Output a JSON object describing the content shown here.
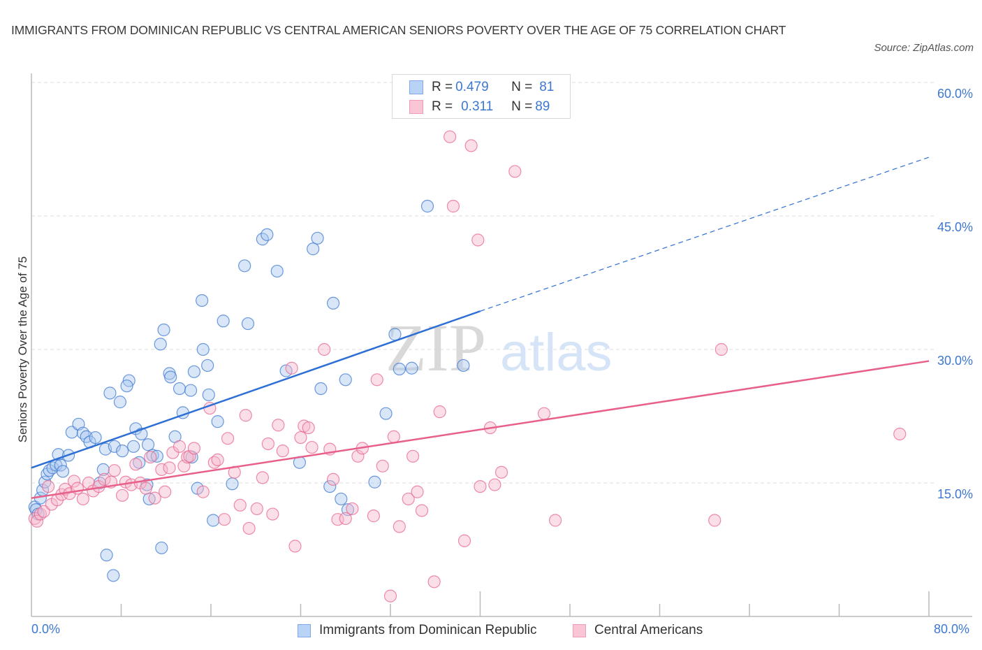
{
  "header": {
    "title": "IMMIGRANTS FROM DOMINICAN REPUBLIC VS CENTRAL AMERICAN SENIORS POVERTY OVER THE AGE OF 75 CORRELATION CHART",
    "source": "Source: ZipAtlas.com"
  },
  "legend": {
    "rows": [
      {
        "r_label": "R = ",
        "r_value": "0.479",
        "n_label": "N = ",
        "n_value": "81"
      },
      {
        "r_label": "R = ",
        "r_value": "0.311",
        "n_label": "N = ",
        "n_value": "89"
      }
    ]
  },
  "watermark": {
    "part1": "ZIP",
    "part2": "atlas"
  },
  "chart_data": {
    "type": "scatter",
    "title": "IMMIGRANTS FROM DOMINICAN REPUBLIC VS CENTRAL AMERICAN SENIORS POVERTY OVER THE AGE OF 75 CORRELATION CHART",
    "xlabel": "",
    "ylabel": "Seniors Poverty Over the Age of 75",
    "xlim": [
      0,
      80
    ],
    "ylim": [
      0,
      60
    ],
    "x_tick_labels": [
      "0.0%",
      "80.0%"
    ],
    "y_ticks": [
      15,
      30,
      45,
      60
    ],
    "y_tick_labels": [
      "15.0%",
      "30.0%",
      "45.0%",
      "60.0%"
    ],
    "grid": true,
    "legend_position": "top-center",
    "colors": {
      "blue": "#3d78d0",
      "blue_fill": "#a9c8f0",
      "pink": "#e8668f",
      "pink_fill": "#f7b8cb",
      "axis_text": "#3d78d0"
    },
    "series": [
      {
        "name": "Immigrants from Dominican Republic",
        "r": 0.479,
        "n": 81,
        "trend": {
          "x0": 0,
          "y0": 16.7,
          "x1": 40,
          "y1": 34.3,
          "dashed_to_x": 80,
          "dashed_to_y": 51.6
        },
        "points": [
          [
            0.3,
            12.3
          ],
          [
            0.4,
            12.0
          ],
          [
            0.6,
            11.5
          ],
          [
            0.8,
            13.3
          ],
          [
            1.0,
            14.2
          ],
          [
            1.2,
            15.1
          ],
          [
            1.4,
            16.0
          ],
          [
            1.6,
            16.4
          ],
          [
            1.9,
            16.7
          ],
          [
            2.2,
            17.0
          ],
          [
            2.4,
            18.2
          ],
          [
            2.6,
            17.0
          ],
          [
            2.8,
            16.3
          ],
          [
            3.3,
            18.1
          ],
          [
            3.6,
            20.7
          ],
          [
            4.2,
            21.6
          ],
          [
            4.6,
            20.6
          ],
          [
            4.9,
            20.2
          ],
          [
            5.2,
            19.6
          ],
          [
            5.7,
            20.1
          ],
          [
            6.1,
            15.0
          ],
          [
            6.4,
            16.5
          ],
          [
            6.6,
            18.8
          ],
          [
            7.0,
            25.1
          ],
          [
            7.4,
            19.1
          ],
          [
            7.9,
            24.1
          ],
          [
            8.1,
            18.6
          ],
          [
            8.7,
            26.5
          ],
          [
            8.5,
            25.9
          ],
          [
            9.1,
            19.1
          ],
          [
            9.3,
            21.1
          ],
          [
            9.6,
            17.3
          ],
          [
            9.8,
            20.5
          ],
          [
            10.4,
            19.3
          ],
          [
            10.3,
            14.8
          ],
          [
            10.8,
            18.1
          ],
          [
            11.2,
            18.0
          ],
          [
            10.5,
            13.2
          ],
          [
            11.5,
            30.6
          ],
          [
            11.8,
            32.2
          ],
          [
            12.3,
            27.3
          ],
          [
            12.4,
            26.9
          ],
          [
            12.8,
            20.2
          ],
          [
            13.2,
            25.6
          ],
          [
            13.5,
            22.9
          ],
          [
            14.2,
            25.4
          ],
          [
            14.5,
            27.5
          ],
          [
            14.8,
            14.4
          ],
          [
            15.2,
            35.5
          ],
          [
            14.3,
            17.9
          ],
          [
            15.3,
            30.0
          ],
          [
            15.7,
            28.2
          ],
          [
            15.8,
            24.9
          ],
          [
            16.2,
            10.8
          ],
          [
            16.6,
            21.9
          ],
          [
            17.1,
            33.2
          ],
          [
            17.9,
            14.9
          ],
          [
            19.0,
            39.4
          ],
          [
            19.3,
            32.9
          ],
          [
            20.6,
            42.4
          ],
          [
            21.0,
            42.9
          ],
          [
            21.9,
            38.8
          ],
          [
            22.7,
            27.6
          ],
          [
            23.9,
            17.3
          ],
          [
            25.1,
            41.3
          ],
          [
            25.5,
            42.5
          ],
          [
            25.8,
            25.6
          ],
          [
            26.6,
            14.6
          ],
          [
            26.9,
            35.2
          ],
          [
            27.6,
            13.2
          ],
          [
            28.0,
            26.6
          ],
          [
            28.2,
            12.0
          ],
          [
            30.6,
            15.1
          ],
          [
            31.6,
            22.8
          ],
          [
            32.4,
            31.7
          ],
          [
            32.8,
            27.8
          ],
          [
            33.9,
            27.9
          ],
          [
            35.3,
            46.1
          ],
          [
            38.5,
            28.2
          ],
          [
            6.7,
            6.9
          ],
          [
            7.3,
            4.6
          ],
          [
            11.6,
            7.7
          ]
        ]
      },
      {
        "name": "Central Americans",
        "r": 0.311,
        "n": 89,
        "trend": {
          "x0": 0,
          "y0": 13.3,
          "x1": 80,
          "y1": 28.7
        },
        "points": [
          [
            0.3,
            11.0
          ],
          [
            0.5,
            10.7
          ],
          [
            0.8,
            11.5
          ],
          [
            1.1,
            11.8
          ],
          [
            1.5,
            14.6
          ],
          [
            1.8,
            12.6
          ],
          [
            2.3,
            13.1
          ],
          [
            2.7,
            13.7
          ],
          [
            3.0,
            14.3
          ],
          [
            3.4,
            13.8
          ],
          [
            3.8,
            15.2
          ],
          [
            4.1,
            14.4
          ],
          [
            4.6,
            13.2
          ],
          [
            5.1,
            15.0
          ],
          [
            5.5,
            14.1
          ],
          [
            6.0,
            14.6
          ],
          [
            6.5,
            15.4
          ],
          [
            7.1,
            15.1
          ],
          [
            7.4,
            16.4
          ],
          [
            8.1,
            13.6
          ],
          [
            8.4,
            15.1
          ],
          [
            8.9,
            14.8
          ],
          [
            9.3,
            17.1
          ],
          [
            9.7,
            15.0
          ],
          [
            10.2,
            14.4
          ],
          [
            10.6,
            17.9
          ],
          [
            11.0,
            13.3
          ],
          [
            11.6,
            16.5
          ],
          [
            11.9,
            14.0
          ],
          [
            12.3,
            16.7
          ],
          [
            12.6,
            18.4
          ],
          [
            13.2,
            19.1
          ],
          [
            13.6,
            16.9
          ],
          [
            13.9,
            17.9
          ],
          [
            14.1,
            18.0
          ],
          [
            14.5,
            18.9
          ],
          [
            15.3,
            14.0
          ],
          [
            15.9,
            23.4
          ],
          [
            16.3,
            17.3
          ],
          [
            16.6,
            17.6
          ],
          [
            17.2,
            10.9
          ],
          [
            17.5,
            20.0
          ],
          [
            18.1,
            16.2
          ],
          [
            18.6,
            12.5
          ],
          [
            19.1,
            22.6
          ],
          [
            19.4,
            9.9
          ],
          [
            20.1,
            12.1
          ],
          [
            20.6,
            15.6
          ],
          [
            21.1,
            19.4
          ],
          [
            21.5,
            11.5
          ],
          [
            22.0,
            21.5
          ],
          [
            22.4,
            18.6
          ],
          [
            23.2,
            27.9
          ],
          [
            23.5,
            7.9
          ],
          [
            24.0,
            20.1
          ],
          [
            24.3,
            21.4
          ],
          [
            24.7,
            21.2
          ],
          [
            25.0,
            19.0
          ],
          [
            26.1,
            30.0
          ],
          [
            26.6,
            18.8
          ],
          [
            26.9,
            15.4
          ],
          [
            27.3,
            10.9
          ],
          [
            28.0,
            11.0
          ],
          [
            28.6,
            12.1
          ],
          [
            29.1,
            18.0
          ],
          [
            29.5,
            18.9
          ],
          [
            30.5,
            11.3
          ],
          [
            30.8,
            26.6
          ],
          [
            31.3,
            16.9
          ],
          [
            32.0,
            2.3
          ],
          [
            32.3,
            20.2
          ],
          [
            32.8,
            10.1
          ],
          [
            33.6,
            13.2
          ],
          [
            34.0,
            18.0
          ],
          [
            34.4,
            14.0
          ],
          [
            34.8,
            11.9
          ],
          [
            35.9,
            3.9
          ],
          [
            36.4,
            23.0
          ],
          [
            37.3,
            53.9
          ],
          [
            37.6,
            46.1
          ],
          [
            38.6,
            8.5
          ],
          [
            39.2,
            52.9
          ],
          [
            39.8,
            42.3
          ],
          [
            40.9,
            21.2
          ],
          [
            41.3,
            14.8
          ],
          [
            41.9,
            16.2
          ],
          [
            43.1,
            50.0
          ],
          [
            45.7,
            22.8
          ],
          [
            46.7,
            10.8
          ],
          [
            60.9,
            10.8
          ],
          [
            61.5,
            30.0
          ],
          [
            77.4,
            20.5
          ],
          [
            40.0,
            14.6
          ]
        ]
      }
    ]
  },
  "bottom_legend": {
    "items": [
      {
        "label": "Immigrants from Dominican Republic"
      },
      {
        "label": "Central Americans"
      }
    ]
  },
  "axes": {
    "x_min_label": "0.0%",
    "x_max_label": "80.0%",
    "y_label": "Seniors Poverty Over the Age of 75"
  }
}
